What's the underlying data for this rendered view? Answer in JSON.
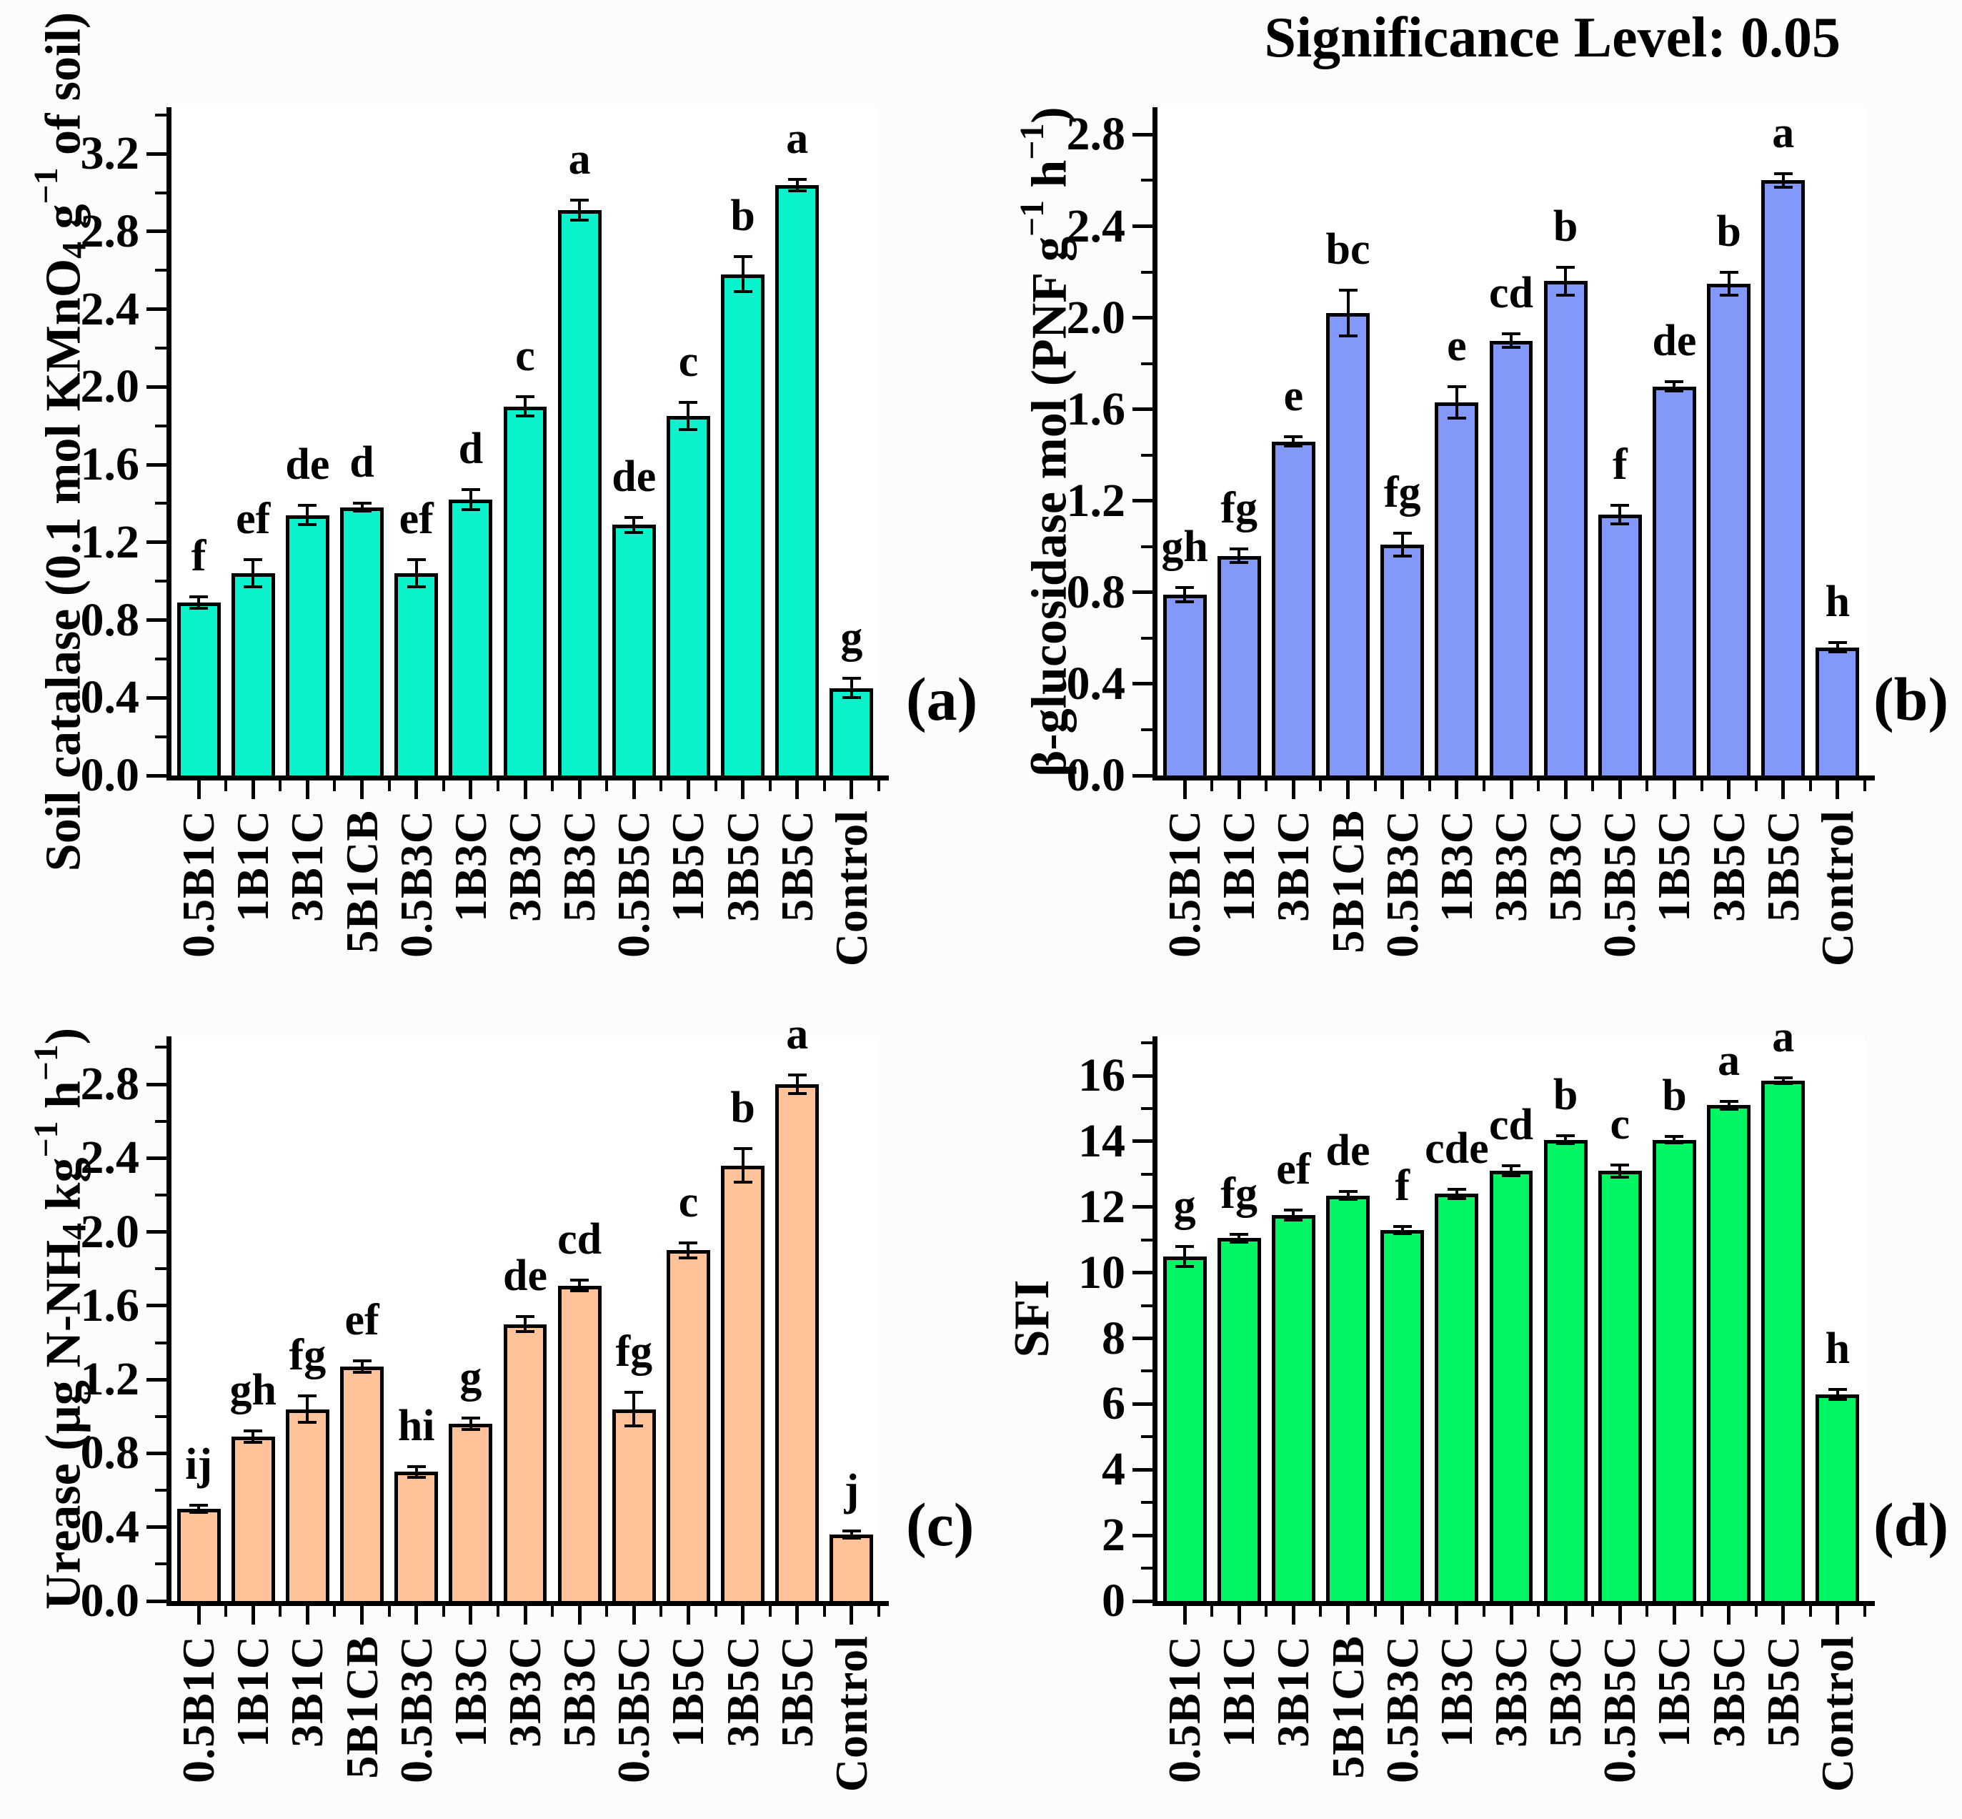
{
  "title": "Significance Level: 0.05",
  "categories": [
    "0.5B1C",
    "1B1C",
    "3B1C",
    "5B1CB",
    "0.5B3C",
    "1B3C",
    "3B3C",
    "5B3C",
    "0.5B5C",
    "1B5C",
    "3B5C",
    "5B5C",
    "Control"
  ],
  "chart_data": [
    {
      "type": "bar",
      "panel_label": "(a)",
      "ylabel_plain": "Soil catalase (0.1 mol KMnO4 g−1 of soil)",
      "ylabel_parts": [
        {
          "t": "Soil catalase (0.1 mol KMnO"
        },
        {
          "t": "4",
          "s": "sub"
        },
        {
          "t": " g"
        },
        {
          "t": "−1",
          "s": "sup"
        },
        {
          "t": " of soil)"
        }
      ],
      "bar_color": "#0af2cc",
      "ylim": [
        0,
        3.44
      ],
      "ytick_step": 0.4,
      "ytick_labels": [
        "0.0",
        "0.4",
        "0.8",
        "1.2",
        "1.6",
        "2.0",
        "2.4",
        "2.8",
        "3.2"
      ],
      "grid": false,
      "categories": [
        "0.5B1C",
        "1B1C",
        "3B1C",
        "5B1CB",
        "0.5B3C",
        "1B3C",
        "3B3C",
        "5B3C",
        "0.5B5C",
        "1B5C",
        "3B5C",
        "5B5C",
        "Control"
      ],
      "values": [
        0.89,
        1.04,
        1.34,
        1.38,
        1.04,
        1.42,
        1.9,
        2.91,
        1.29,
        1.85,
        2.58,
        3.04,
        0.45
      ],
      "errors": [
        0.03,
        0.07,
        0.05,
        0.02,
        0.07,
        0.05,
        0.05,
        0.05,
        0.04,
        0.07,
        0.09,
        0.03,
        0.05
      ],
      "sig_letters": [
        "f",
        "ef",
        "de",
        "d",
        "ef",
        "d",
        "c",
        "a",
        "de",
        "c",
        "b",
        "a",
        "g"
      ]
    },
    {
      "type": "bar",
      "panel_label": "(b)",
      "ylabel_plain": "β-glucosidase mol (PNF g−1 h−1)",
      "ylabel_parts": [
        {
          "t": "β-glucosidase mol (PNF g"
        },
        {
          "t": "−1",
          "s": "sup"
        },
        {
          "t": " h"
        },
        {
          "t": "−1",
          "s": "sup"
        },
        {
          "t": ")"
        }
      ],
      "bar_color": "#8299fa",
      "ylim": [
        0,
        2.92
      ],
      "ytick_step": 0.4,
      "ytick_labels": [
        "0.0",
        "0.4",
        "0.8",
        "1.2",
        "1.6",
        "2.0",
        "2.4",
        "2.8"
      ],
      "grid": false,
      "categories": [
        "0.5B1C",
        "1B1C",
        "3B1C",
        "5B1CB",
        "0.5B3C",
        "1B3C",
        "3B3C",
        "5B3C",
        "0.5B5C",
        "1B5C",
        "3B5C",
        "5B5C",
        "Control"
      ],
      "values": [
        0.79,
        0.96,
        1.46,
        2.02,
        1.01,
        1.63,
        1.9,
        2.16,
        1.14,
        1.7,
        2.15,
        2.6,
        0.56
      ],
      "errors": [
        0.03,
        0.03,
        0.02,
        0.1,
        0.05,
        0.07,
        0.03,
        0.06,
        0.04,
        0.02,
        0.05,
        0.03,
        0.02
      ],
      "sig_letters": [
        "gh",
        "fg",
        "e",
        "bc",
        "fg",
        "e",
        "cd",
        "b",
        "f",
        "de",
        "b",
        "a",
        "h"
      ]
    },
    {
      "type": "bar",
      "panel_label": "(c)",
      "ylabel_plain": "Urease (µg N-NH4 kg−1 h−1)",
      "ylabel_parts": [
        {
          "t": "Urease (µg N-NH"
        },
        {
          "t": "4",
          "s": "sub"
        },
        {
          "t": " kg"
        },
        {
          "t": "−1",
          "s": "sup"
        },
        {
          "t": " h"
        },
        {
          "t": "−1",
          "s": "sup"
        },
        {
          "t": ")"
        }
      ],
      "bar_color": "#ffc299",
      "ylim": [
        0,
        3.06
      ],
      "ytick_step": 0.4,
      "ytick_labels": [
        "0.0",
        "0.4",
        "0.8",
        "1.2",
        "1.6",
        "2.0",
        "2.4",
        "2.8"
      ],
      "grid": false,
      "categories": [
        "0.5B1C",
        "1B1C",
        "3B1C",
        "5B1CB",
        "0.5B3C",
        "1B3C",
        "3B3C",
        "5B3C",
        "0.5B5C",
        "1B5C",
        "3B5C",
        "5B5C",
        "Control"
      ],
      "values": [
        0.5,
        0.89,
        1.04,
        1.27,
        0.7,
        0.96,
        1.5,
        1.71,
        1.04,
        1.9,
        2.36,
        2.8,
        0.36
      ],
      "errors": [
        0.02,
        0.03,
        0.07,
        0.03,
        0.03,
        0.03,
        0.04,
        0.03,
        0.09,
        0.04,
        0.09,
        0.05,
        0.02
      ],
      "sig_letters": [
        "ij",
        "gh",
        "fg",
        "ef",
        "hi",
        "g",
        "de",
        "cd",
        "fg",
        "c",
        "b",
        "a",
        "j"
      ]
    },
    {
      "type": "bar",
      "panel_label": "(d)",
      "ylabel_plain": "SFI",
      "ylabel_parts": [
        {
          "t": "SFI"
        }
      ],
      "bar_color": "#00f763",
      "ylim": [
        0,
        17.2
      ],
      "ytick_step": 2,
      "ytick_labels": [
        "0",
        "2",
        "4",
        "6",
        "8",
        "10",
        "12",
        "14",
        "16"
      ],
      "grid": false,
      "categories": [
        "0.5B1C",
        "1B1C",
        "3B1C",
        "5B1CB",
        "0.5B3C",
        "1B3C",
        "3B3C",
        "5B3C",
        "0.5B5C",
        "1B5C",
        "3B5C",
        "5B5C",
        "Control"
      ],
      "values": [
        10.5,
        11.05,
        11.75,
        12.35,
        11.3,
        12.4,
        13.1,
        14.05,
        13.1,
        14.05,
        15.1,
        15.85,
        6.3
      ],
      "errors": [
        0.3,
        0.12,
        0.15,
        0.12,
        0.1,
        0.15,
        0.15,
        0.12,
        0.18,
        0.1,
        0.12,
        0.08,
        0.15
      ],
      "sig_letters": [
        "g",
        "fg",
        "ef",
        "de",
        "f",
        "cde",
        "cd",
        "b",
        "c",
        "b",
        "a",
        "a",
        "h"
      ]
    }
  ]
}
